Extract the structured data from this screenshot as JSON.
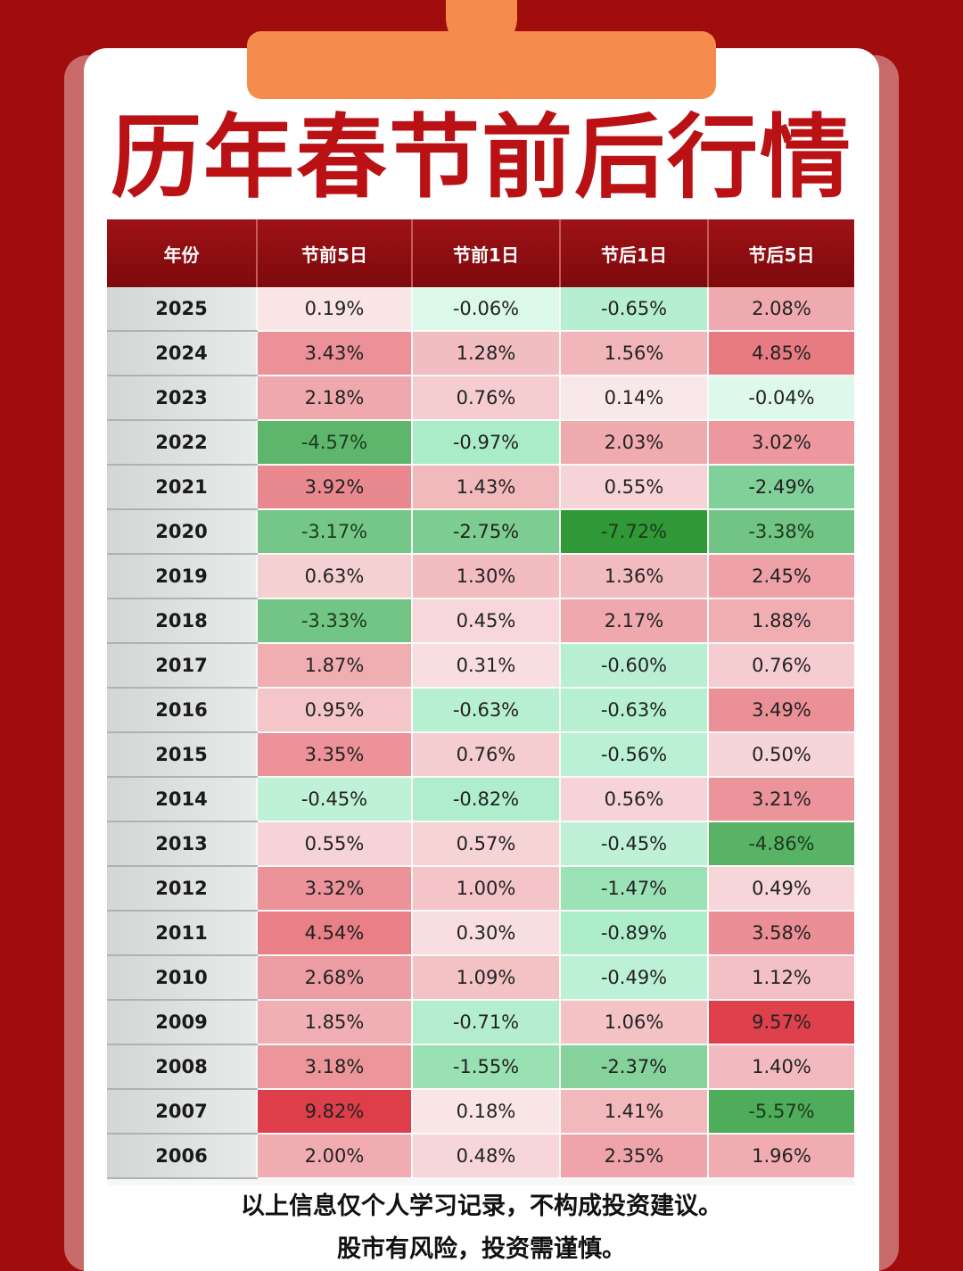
{
  "title": "历年春节前后行情",
  "chart_data": {
    "type": "table",
    "columns": [
      "年份",
      "节前5日",
      "节前1日",
      "节后1日",
      "节后5日"
    ],
    "rows": [
      [
        "2025",
        "0.19%",
        "-0.06%",
        "-0.65%",
        "2.08%"
      ],
      [
        "2024",
        "3.43%",
        "1.28%",
        "1.56%",
        "4.85%"
      ],
      [
        "2023",
        "2.18%",
        "0.76%",
        "0.14%",
        "-0.04%"
      ],
      [
        "2022",
        "-4.57%",
        "-0.97%",
        "2.03%",
        "3.02%"
      ],
      [
        "2021",
        "3.92%",
        "1.43%",
        "0.55%",
        "-2.49%"
      ],
      [
        "2020",
        "-3.17%",
        "-2.75%",
        "-7.72%",
        "-3.38%"
      ],
      [
        "2019",
        "0.63%",
        "1.30%",
        "1.36%",
        "2.45%"
      ],
      [
        "2018",
        "-3.33%",
        "0.45%",
        "2.17%",
        "1.88%"
      ],
      [
        "2017",
        "1.87%",
        "0.31%",
        "-0.60%",
        "0.76%"
      ],
      [
        "2016",
        "0.95%",
        "-0.63%",
        "-0.63%",
        "3.49%"
      ],
      [
        "2015",
        "3.35%",
        "0.76%",
        "-0.56%",
        "0.50%"
      ],
      [
        "2014",
        "-0.45%",
        "-0.82%",
        "0.56%",
        "3.21%"
      ],
      [
        "2013",
        "0.55%",
        "0.57%",
        "-0.45%",
        "-4.86%"
      ],
      [
        "2012",
        "3.32%",
        "1.00%",
        "-1.47%",
        "0.49%"
      ],
      [
        "2011",
        "4.54%",
        "0.30%",
        "-0.89%",
        "3.58%"
      ],
      [
        "2010",
        "2.68%",
        "1.09%",
        "-0.49%",
        "1.12%"
      ],
      [
        "2009",
        "1.85%",
        "-0.71%",
        "1.06%",
        "9.57%"
      ],
      [
        "2008",
        "3.18%",
        "-1.55%",
        "-2.37%",
        "1.40%"
      ],
      [
        "2007",
        "9.82%",
        "0.18%",
        "1.41%",
        "-5.57%"
      ],
      [
        "2006",
        "2.00%",
        "0.48%",
        "2.35%",
        "1.96%"
      ]
    ]
  },
  "footer": {
    "line1": "以上信息仅个人学习记录，不构成投资建议。",
    "line2": "股市有风险，投资需谨慎。"
  },
  "colors": {
    "background": "#a10c0d",
    "title": "#ba1114",
    "header": "#8e0f12",
    "accent_orange": "#f58c4e",
    "positive": "#e5414f",
    "negative": "#2e9a34"
  }
}
